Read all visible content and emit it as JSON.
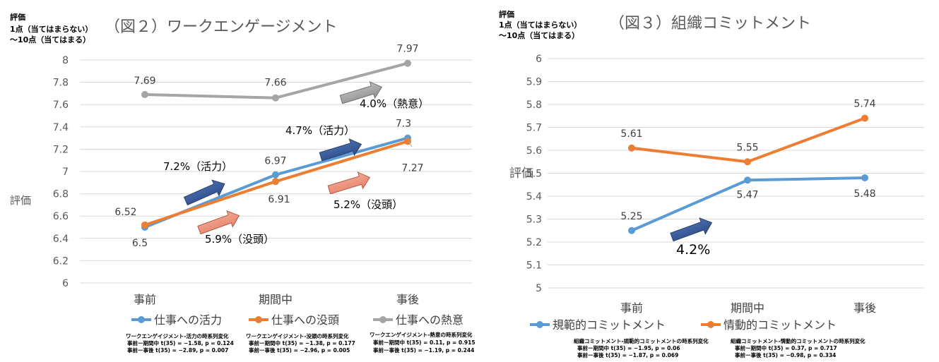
{
  "chart_data": [
    {
      "type": "line",
      "title": "（図２）ワークエンゲージメント",
      "ylabel_block": [
        "評価",
        "1点（当てはまらない）",
        "～10点（当てはまる）"
      ],
      "ylabel": "評価",
      "categories": [
        "事前",
        "期間中",
        "事後"
      ],
      "ylim": [
        6,
        8
      ],
      "yticks": [
        "6",
        "6.2",
        "6.4",
        "6.6",
        "6.8",
        "7",
        "7.2",
        "7.4",
        "7.6",
        "7.8",
        "8"
      ],
      "grid": true,
      "legend_position": "bottom",
      "series": [
        {
          "name": "仕事への活力",
          "color": "#5B9BD5",
          "values": [
            6.5,
            6.97,
            7.3
          ],
          "labels": [
            "6.5",
            "6.97",
            "7.3"
          ]
        },
        {
          "name": "仕事への没頭",
          "color": "#ED7D31",
          "values": [
            6.52,
            6.91,
            7.27
          ],
          "labels": [
            "6.52",
            "6.91",
            "7.27"
          ]
        },
        {
          "name": "仕事への熱意",
          "color": "#A5A5A5",
          "values": [
            7.69,
            7.66,
            7.97
          ],
          "labels": [
            "7.69",
            "7.66",
            "7.97"
          ]
        }
      ],
      "annotations": [
        "7.2%（活力）",
        "5.9%（没頭）",
        "4.7%（活力）",
        "5.2%（没頭）",
        "4.0%（熱意）"
      ],
      "stats": [
        [
          "ワークエンゲイジメント-活力の時系列変化",
          "事前ー期間中 t(35) = −1.58, p = 0.124",
          "事前ー事後 t(35) = −2.89, p = 0.007"
        ],
        [
          "ワークエンゲイジメント-没頭の時系列変化",
          "事前ー期間中 t(35) = −1.38, p = 0.177",
          "事前ー事後 t(35) = −2.96, p = 0.005"
        ],
        [
          "ワークエンゲイジメント-熱意の時系列変化",
          "事前ー期間中 t(35) = 0.11, p = 0.915",
          "事前ー事後 t(35) = −1.19, p = 0.244"
        ]
      ]
    },
    {
      "type": "line",
      "title": "（図３）組織コミットメント",
      "ylabel_block": [
        "評価",
        "1点（当てはまらない）",
        "～10点（当てはまる）"
      ],
      "ylabel": "評価",
      "categories": [
        "事前",
        "期間中",
        "事後"
      ],
      "ylim": [
        5,
        6
      ],
      "yticks": [
        "5",
        "5.1",
        "5.2",
        "5.3",
        "5.4",
        "5.5",
        "5.6",
        "5.7",
        "5.8",
        "5.9",
        "6"
      ],
      "grid": true,
      "legend_position": "bottom",
      "series": [
        {
          "name": "規範的コミットメント",
          "color": "#5B9BD5",
          "values": [
            5.25,
            5.47,
            5.48
          ],
          "labels": [
            "5.25",
            "5.47",
            "5.48"
          ]
        },
        {
          "name": "情動的コミットメント",
          "color": "#ED7D31",
          "values": [
            5.61,
            5.55,
            5.74
          ],
          "labels": [
            "5.61",
            "5.55",
            "5.74"
          ]
        }
      ],
      "annotations": [
        "4.2%"
      ],
      "stats": [
        [
          "組織コミットメント-規範的コミットメントの時系列変化",
          "事前ー期間中 t(35) = −1.95, p = 0.06",
          "事前ー事後 t(35) = −1.87, p = 0.069"
        ],
        [
          "組織コミットメント-情動的コミットメントの時系列変化",
          "事前ー期間中 t(35) = 0.37, p = 0.717",
          "事前ー事後 t(35) = −0.98, p = 0.334"
        ]
      ]
    }
  ]
}
